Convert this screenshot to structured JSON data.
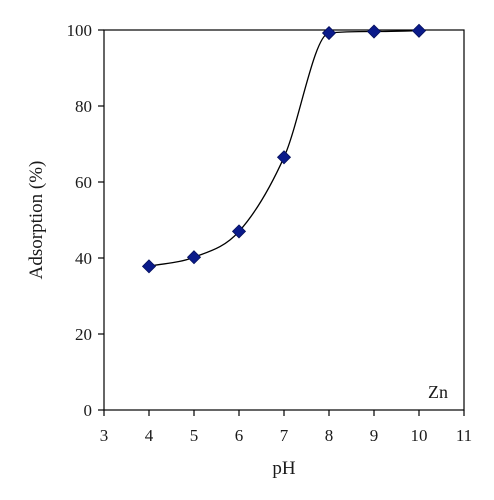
{
  "chart_data": {
    "type": "scatter",
    "xlabel": "pH",
    "ylabel": "Adsorption (%)",
    "annotation": "Zn",
    "xlim": [
      3,
      11
    ],
    "ylim": [
      0,
      100
    ],
    "xticks": [
      "3",
      "4",
      "5",
      "6",
      "7",
      "8",
      "9",
      "10",
      "11"
    ],
    "yticks": [
      "0",
      "20",
      "40",
      "60",
      "80",
      "100"
    ],
    "grid": false,
    "marker": "diamond",
    "smooth_line": true,
    "colors": {
      "marker": "#0a1a8a",
      "marker_stroke": "#06105c",
      "line": "#000000",
      "axis": "#000000"
    },
    "series": [
      {
        "x": [
          4,
          5,
          6,
          7,
          8,
          9,
          10
        ],
        "y": [
          37.8,
          40.2,
          47.0,
          66.5,
          99.2,
          99.6,
          99.8
        ]
      }
    ]
  }
}
